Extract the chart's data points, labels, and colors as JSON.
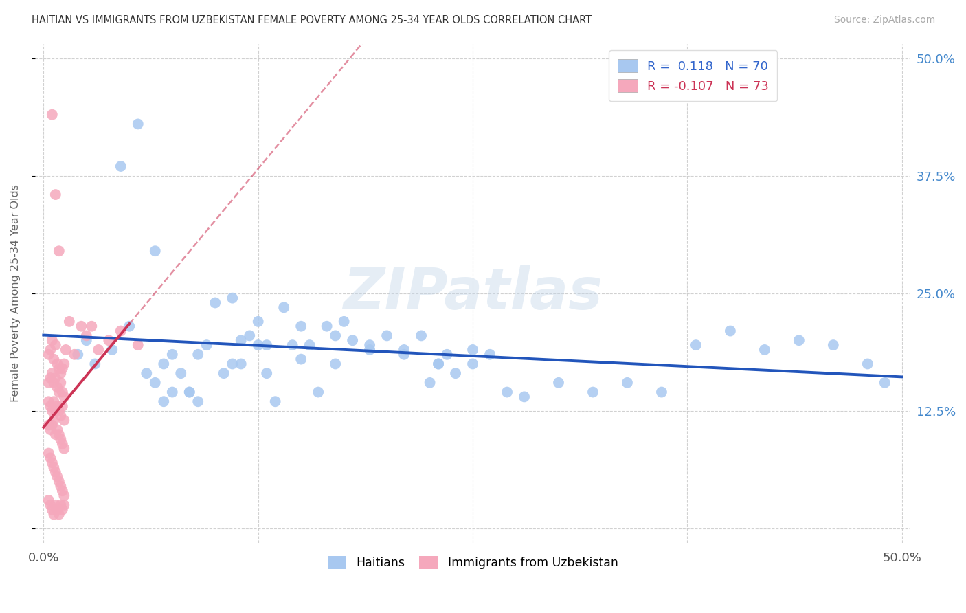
{
  "title": "HAITIAN VS IMMIGRANTS FROM UZBEKISTAN FEMALE POVERTY AMONG 25-34 YEAR OLDS CORRELATION CHART",
  "source": "Source: ZipAtlas.com",
  "ylabel": "Female Poverty Among 25-34 Year Olds",
  "r_haitian": 0.118,
  "n_haitian": 70,
  "r_uzbekistan": -0.107,
  "n_uzbekistan": 73,
  "legend_label_1": "Haitians",
  "legend_label_2": "Immigrants from Uzbekistan",
  "color_haitian": "#a8c8f0",
  "color_uzbekistan": "#f5a8bc",
  "trend_color_haitian": "#2255bb",
  "trend_color_uzbekistan": "#cc3355",
  "xmin": 0.0,
  "xmax": 0.5,
  "ymin": 0.0,
  "ymax": 0.5,
  "watermark": "ZIPatlas",
  "haitian_x": [
    0.02,
    0.025,
    0.03,
    0.04,
    0.05,
    0.06,
    0.065,
    0.07,
    0.075,
    0.08,
    0.085,
    0.09,
    0.1,
    0.11,
    0.115,
    0.12,
    0.125,
    0.13,
    0.14,
    0.145,
    0.15,
    0.155,
    0.16,
    0.165,
    0.17,
    0.175,
    0.18,
    0.19,
    0.2,
    0.21,
    0.22,
    0.225,
    0.23,
    0.235,
    0.24,
    0.25,
    0.26,
    0.27,
    0.28,
    0.3,
    0.32,
    0.34,
    0.36,
    0.38,
    0.4,
    0.42,
    0.44,
    0.46,
    0.48,
    0.49,
    0.07,
    0.09,
    0.11,
    0.13,
    0.15,
    0.17,
    0.19,
    0.21,
    0.23,
    0.25,
    0.045,
    0.055,
    0.065,
    0.075,
    0.085,
    0.095,
    0.105,
    0.115,
    0.125,
    0.135
  ],
  "haitian_y": [
    0.185,
    0.2,
    0.175,
    0.19,
    0.215,
    0.165,
    0.155,
    0.135,
    0.145,
    0.165,
    0.145,
    0.135,
    0.24,
    0.245,
    0.2,
    0.205,
    0.22,
    0.195,
    0.235,
    0.195,
    0.215,
    0.195,
    0.145,
    0.215,
    0.205,
    0.22,
    0.2,
    0.195,
    0.205,
    0.19,
    0.205,
    0.155,
    0.175,
    0.185,
    0.165,
    0.175,
    0.185,
    0.145,
    0.14,
    0.155,
    0.145,
    0.155,
    0.145,
    0.195,
    0.21,
    0.19,
    0.2,
    0.195,
    0.175,
    0.155,
    0.175,
    0.185,
    0.175,
    0.165,
    0.18,
    0.175,
    0.19,
    0.185,
    0.175,
    0.19,
    0.385,
    0.43,
    0.295,
    0.185,
    0.145,
    0.195,
    0.165,
    0.175,
    0.195,
    0.135
  ],
  "uzbekistan_x": [
    0.003,
    0.004,
    0.005,
    0.006,
    0.007,
    0.008,
    0.009,
    0.01,
    0.011,
    0.012,
    0.003,
    0.004,
    0.005,
    0.006,
    0.007,
    0.008,
    0.009,
    0.01,
    0.011,
    0.012,
    0.003,
    0.004,
    0.005,
    0.006,
    0.007,
    0.008,
    0.009,
    0.01,
    0.011,
    0.012,
    0.003,
    0.004,
    0.005,
    0.006,
    0.007,
    0.008,
    0.009,
    0.01,
    0.011,
    0.012,
    0.003,
    0.004,
    0.005,
    0.006,
    0.007,
    0.008,
    0.009,
    0.01,
    0.011,
    0.012,
    0.003,
    0.004,
    0.005,
    0.006,
    0.007,
    0.008,
    0.009,
    0.01,
    0.011,
    0.012,
    0.013,
    0.015,
    0.018,
    0.022,
    0.025,
    0.028,
    0.032,
    0.038,
    0.045,
    0.055,
    0.005,
    0.007,
    0.009
  ],
  "uzbekistan_y": [
    0.185,
    0.19,
    0.2,
    0.18,
    0.195,
    0.175,
    0.17,
    0.165,
    0.17,
    0.175,
    0.155,
    0.16,
    0.165,
    0.155,
    0.16,
    0.15,
    0.145,
    0.155,
    0.145,
    0.14,
    0.135,
    0.13,
    0.125,
    0.135,
    0.125,
    0.13,
    0.125,
    0.12,
    0.13,
    0.115,
    0.11,
    0.105,
    0.11,
    0.115,
    0.1,
    0.105,
    0.1,
    0.095,
    0.09,
    0.085,
    0.08,
    0.075,
    0.07,
    0.065,
    0.06,
    0.055,
    0.05,
    0.045,
    0.04,
    0.035,
    0.03,
    0.025,
    0.02,
    0.015,
    0.025,
    0.02,
    0.015,
    0.025,
    0.02,
    0.025,
    0.19,
    0.22,
    0.185,
    0.215,
    0.205,
    0.215,
    0.19,
    0.2,
    0.21,
    0.195,
    0.44,
    0.355,
    0.295
  ]
}
